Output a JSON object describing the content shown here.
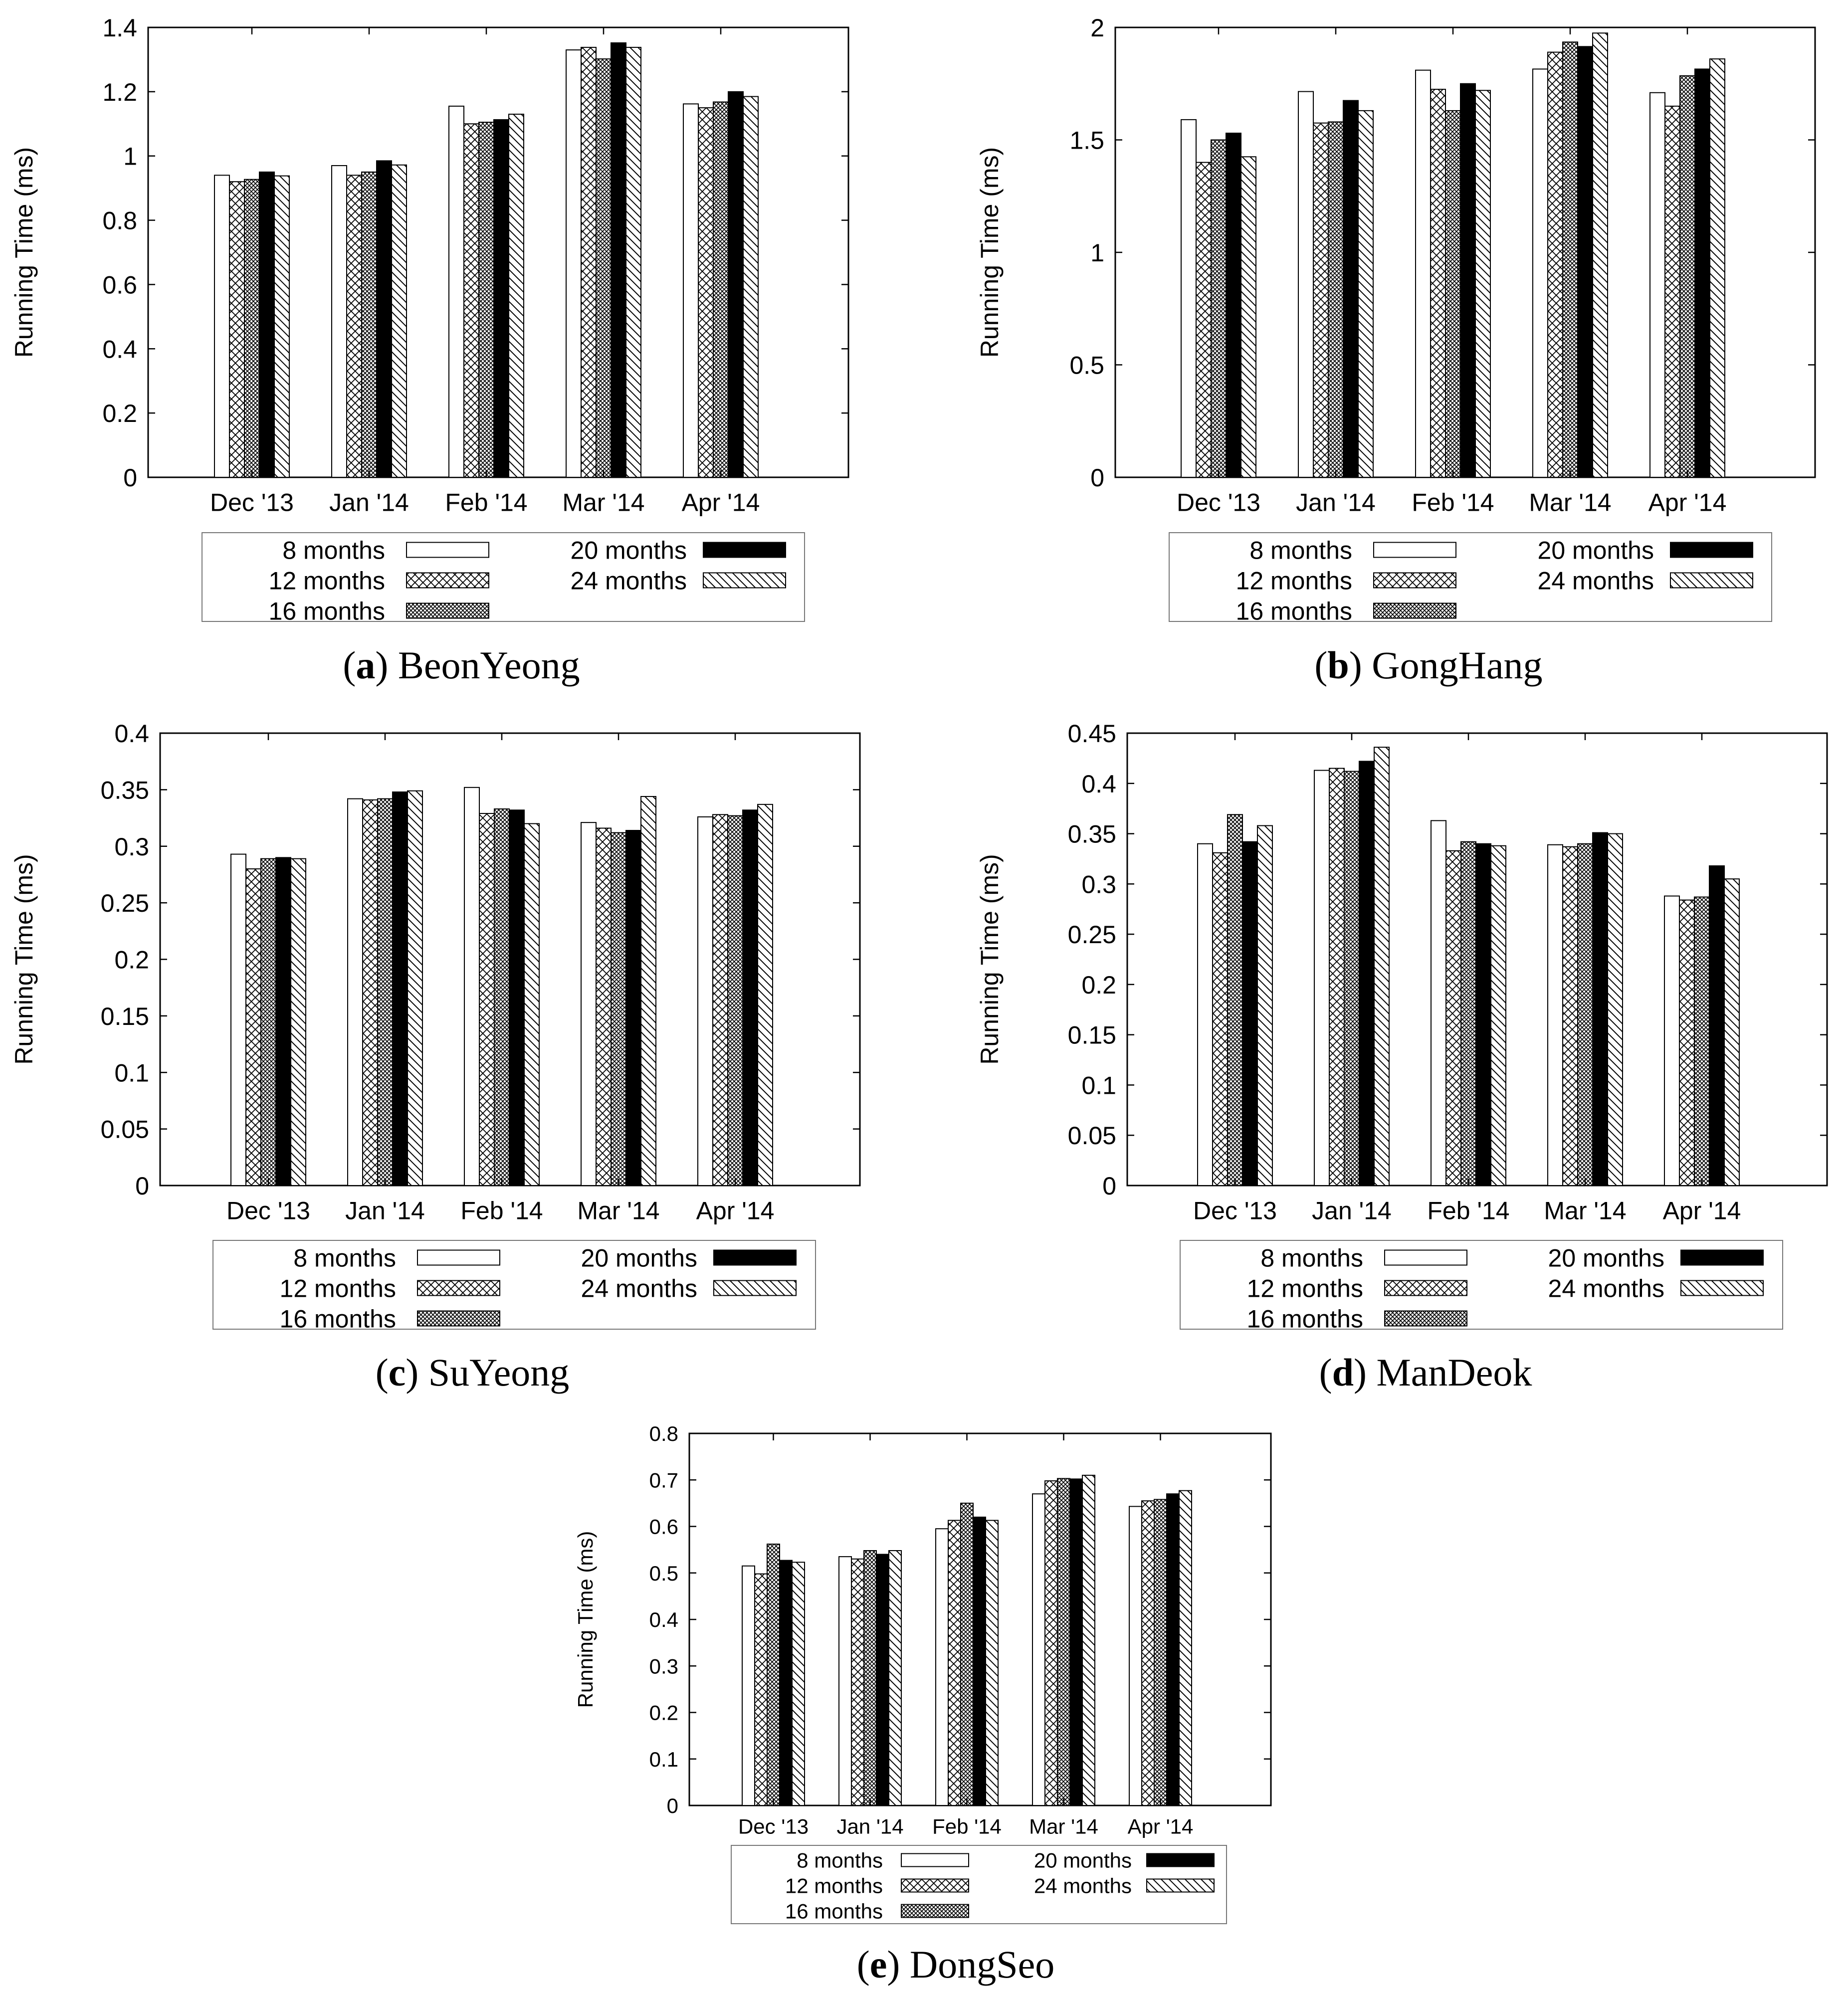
{
  "figure": {
    "ylabel": "Running Time (ms)",
    "categories": [
      "Dec '13",
      "Jan '14",
      "Feb '14",
      "Mar '14",
      "Apr '14"
    ],
    "series_names": [
      "8 months",
      "12 months",
      "16 months",
      "20 months",
      "24 months"
    ],
    "colors": {
      "background": "#ffffff",
      "ink": "#000000",
      "legend_border": "#777777"
    }
  },
  "chart_data": [
    {
      "type": "bar",
      "panel_letter": "a",
      "title": "BeonYeong",
      "ylabel": "Running Time (ms)",
      "ylim": [
        0,
        1.4
      ],
      "yticks": [
        0,
        0.2,
        0.4,
        0.6,
        0.8,
        1,
        1.2,
        1.4
      ],
      "categories": [
        "Dec '13",
        "Jan '14",
        "Feb '14",
        "Mar '14",
        "Apr '14"
      ],
      "series": [
        {
          "name": "8 months",
          "values": [
            0.94,
            0.97,
            1.155,
            1.33,
            1.162
          ]
        },
        {
          "name": "12 months",
          "values": [
            0.92,
            0.94,
            1.1,
            1.338,
            1.15
          ]
        },
        {
          "name": "16 months",
          "values": [
            0.927,
            0.95,
            1.105,
            1.302,
            1.168
          ]
        },
        {
          "name": "20 months",
          "values": [
            0.95,
            0.985,
            1.113,
            1.352,
            1.2
          ]
        },
        {
          "name": "24 months",
          "values": [
            0.938,
            0.972,
            1.13,
            1.338,
            1.185
          ]
        }
      ]
    },
    {
      "type": "bar",
      "panel_letter": "b",
      "title": "GongHang",
      "ylabel": "Running Time (ms)",
      "ylim": [
        0,
        2
      ],
      "yticks": [
        0,
        0.5,
        1,
        1.5,
        2
      ],
      "categories": [
        "Dec '13",
        "Jan '14",
        "Feb '14",
        "Mar '14",
        "Apr '14"
      ],
      "series": [
        {
          "name": "8 months",
          "values": [
            1.59,
            1.715,
            1.81,
            1.815,
            1.71
          ]
        },
        {
          "name": "12 months",
          "values": [
            1.4,
            1.575,
            1.725,
            1.89,
            1.65
          ]
        },
        {
          "name": "16 months",
          "values": [
            1.5,
            1.58,
            1.63,
            1.935,
            1.785
          ]
        },
        {
          "name": "20 months",
          "values": [
            1.53,
            1.675,
            1.75,
            1.915,
            1.815
          ]
        },
        {
          "name": "24 months",
          "values": [
            1.425,
            1.63,
            1.72,
            1.975,
            1.86
          ]
        }
      ]
    },
    {
      "type": "bar",
      "panel_letter": "c",
      "title": "SuYeong",
      "ylabel": "Running Time (ms)",
      "ylim": [
        0,
        0.4
      ],
      "yticks": [
        0,
        0.05,
        0.1,
        0.15,
        0.2,
        0.25,
        0.3,
        0.35,
        0.4
      ],
      "categories": [
        "Dec '13",
        "Jan '14",
        "Feb '14",
        "Mar '14",
        "Apr '14"
      ],
      "series": [
        {
          "name": "8 months",
          "values": [
            0.293,
            0.342,
            0.352,
            0.321,
            0.326
          ]
        },
        {
          "name": "12 months",
          "values": [
            0.28,
            0.341,
            0.329,
            0.316,
            0.328
          ]
        },
        {
          "name": "16 months",
          "values": [
            0.289,
            0.342,
            0.333,
            0.312,
            0.327
          ]
        },
        {
          "name": "20 months",
          "values": [
            0.29,
            0.348,
            0.332,
            0.314,
            0.332
          ]
        },
        {
          "name": "24 months",
          "values": [
            0.289,
            0.349,
            0.32,
            0.344,
            0.337
          ]
        }
      ]
    },
    {
      "type": "bar",
      "panel_letter": "d",
      "title": "ManDeok",
      "ylabel": "Running Time (ms)",
      "ylim": [
        0,
        0.45
      ],
      "yticks": [
        0,
        0.05,
        0.1,
        0.15,
        0.2,
        0.25,
        0.3,
        0.35,
        0.4,
        0.45
      ],
      "categories": [
        "Dec '13",
        "Jan '14",
        "Feb '14",
        "Mar '14",
        "Apr '14"
      ],
      "series": [
        {
          "name": "8 months",
          "values": [
            0.34,
            0.413,
            0.363,
            0.339,
            0.288
          ]
        },
        {
          "name": "12 months",
          "values": [
            0.331,
            0.415,
            0.333,
            0.337,
            0.284
          ]
        },
        {
          "name": "16 months",
          "values": [
            0.369,
            0.412,
            0.342,
            0.34,
            0.287
          ]
        },
        {
          "name": "20 months",
          "values": [
            0.342,
            0.422,
            0.34,
            0.351,
            0.318
          ]
        },
        {
          "name": "24 months",
          "values": [
            0.358,
            0.436,
            0.338,
            0.35,
            0.305
          ]
        }
      ]
    },
    {
      "type": "bar",
      "panel_letter": "e",
      "title": "DongSeo",
      "ylabel": "Running Time (ms)",
      "ylim": [
        0,
        0.8
      ],
      "yticks": [
        0,
        0.1,
        0.2,
        0.3,
        0.4,
        0.5,
        0.6,
        0.7,
        0.8
      ],
      "categories": [
        "Dec '13",
        "Jan '14",
        "Feb '14",
        "Mar '14",
        "Apr '14"
      ],
      "series": [
        {
          "name": "8 months",
          "values": [
            0.515,
            0.535,
            0.595,
            0.67,
            0.643
          ]
        },
        {
          "name": "12 months",
          "values": [
            0.498,
            0.53,
            0.613,
            0.698,
            0.655
          ]
        },
        {
          "name": "16 months",
          "values": [
            0.562,
            0.548,
            0.65,
            0.703,
            0.658
          ]
        },
        {
          "name": "20 months",
          "values": [
            0.527,
            0.54,
            0.62,
            0.702,
            0.67
          ]
        },
        {
          "name": "24 months",
          "values": [
            0.523,
            0.548,
            0.613,
            0.71,
            0.677
          ]
        }
      ]
    }
  ]
}
